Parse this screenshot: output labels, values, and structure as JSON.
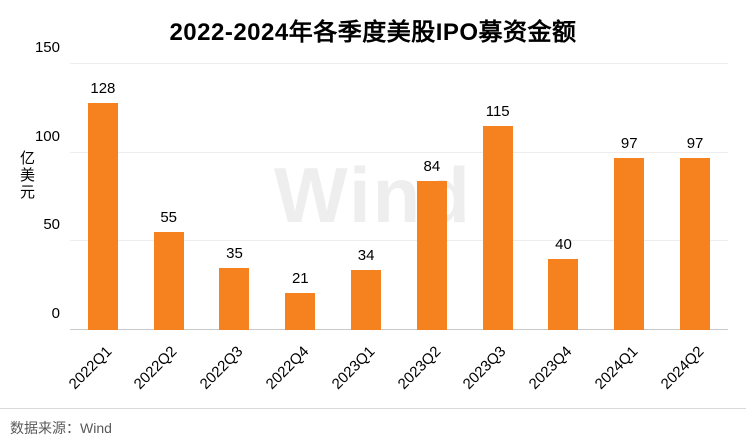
{
  "title": "2022-2024年各季度美股IPO募资金额",
  "watermark": "Wind",
  "source": "数据来源：Wind",
  "colors": {
    "bar": "#F5821F",
    "grid": "#ededed",
    "axis_base": "#c9c9c9",
    "source_text": "#595959"
  },
  "chart_data": {
    "type": "bar",
    "title": "2022-2024年各季度美股IPO募资金额",
    "categories": [
      "2022Q1",
      "2022Q2",
      "2022Q3",
      "2022Q4",
      "2023Q1",
      "2023Q2",
      "2023Q3",
      "2023Q4",
      "2024Q1",
      "2024Q2"
    ],
    "values": [
      128,
      55,
      35,
      21,
      34,
      84,
      115,
      40,
      97,
      97
    ],
    "xlabel": "",
    "ylabel": "亿美元",
    "ylim": [
      0,
      150
    ],
    "yticks": [
      0,
      50,
      100,
      150
    ],
    "grid": true,
    "legend": false,
    "bar_color": "#F5821F",
    "value_labels": true
  }
}
